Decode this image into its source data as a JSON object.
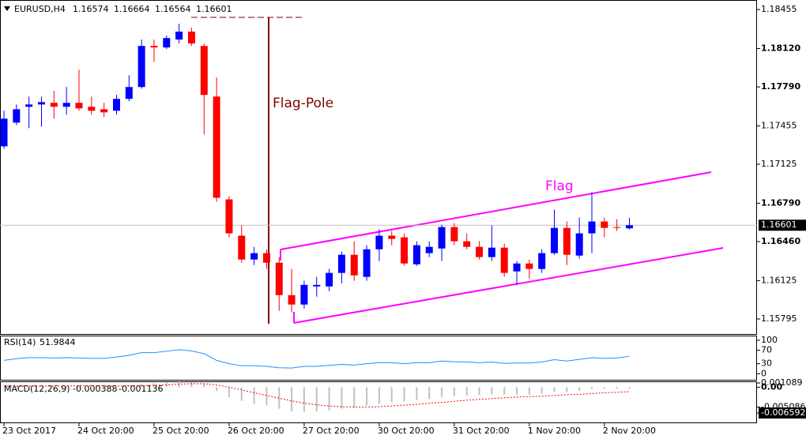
{
  "chart_data": [
    {
      "type": "candlestick",
      "title": "EURUSD,H4",
      "categories": [
        "23 Oct 2017",
        null,
        null,
        null,
        null,
        null,
        "24 Oct 20:00",
        null,
        null,
        null,
        null,
        null,
        "25 Oct 20:00",
        null,
        null,
        null,
        null,
        null,
        "26 Oct 20:00",
        null,
        null,
        null,
        null,
        null,
        "27 Oct 20:00",
        null,
        null,
        null,
        null,
        null,
        "30 Oct 20:00",
        null,
        null,
        null,
        null,
        null,
        "31 Oct 20:00",
        null,
        null,
        null,
        null,
        null,
        "1 Nov 20:00",
        null,
        null,
        null,
        null,
        null,
        "2 Nov 20:00",
        null,
        null
      ],
      "open": [
        1.17279,
        1.17483,
        1.17619,
        1.17639,
        1.17653,
        1.17619,
        1.17653,
        1.17619,
        1.17598,
        1.17585,
        1.17687,
        1.17789,
        1.18142,
        1.18129,
        1.18197,
        1.18265,
        1.18142,
        1.17707,
        1.16823,
        1.16511,
        1.16306,
        1.16361,
        1.16279,
        1.16,
        1.15919,
        1.16075,
        1.16075,
        1.16191,
        1.16347,
        1.16157,
        1.16394,
        1.16511,
        1.16497,
        1.16265,
        1.16361,
        1.16401,
        1.16585,
        1.16463,
        1.16415,
        1.16327,
        1.16408,
        1.16204,
        1.16272,
        1.16225,
        1.16361,
        1.16578,
        1.1634,
        1.16531,
        1.16633,
        1.16585,
        1.16574
      ],
      "high": [
        1.17585,
        1.17639,
        1.17707,
        1.17707,
        1.17755,
        1.17789,
        1.17938,
        1.17707,
        1.17653,
        1.17721,
        1.17891,
        1.18197,
        1.18197,
        1.18231,
        1.18333,
        1.18299,
        1.18163,
        1.1787,
        1.1685,
        1.16598,
        1.16415,
        1.16394,
        1.16327,
        1.16225,
        1.16123,
        1.16157,
        1.16225,
        1.16374,
        1.16463,
        1.16429,
        1.16565,
        1.16551,
        1.16531,
        1.16463,
        1.16463,
        1.16605,
        1.16619,
        1.16531,
        1.16463,
        1.16598,
        1.16443,
        1.16293,
        1.16306,
        1.16394,
        1.16735,
        1.16633,
        1.16667,
        1.16884,
        1.16667,
        1.16653,
        1.16664
      ],
      "low": [
        1.17258,
        1.17462,
        1.17435,
        1.17449,
        1.17517,
        1.17551,
        1.17585,
        1.17551,
        1.1753,
        1.17551,
        1.17666,
        1.17775,
        1.18006,
        1.18115,
        1.18163,
        1.18142,
        1.17381,
        1.16803,
        1.16497,
        1.16279,
        1.16258,
        1.16225,
        1.15864,
        1.15851,
        1.15885,
        1.15987,
        1.16034,
        1.16102,
        1.16123,
        1.16123,
        1.16293,
        1.16429,
        1.16252,
        1.16252,
        1.16327,
        1.16293,
        1.16429,
        1.16394,
        1.16306,
        1.16293,
        1.16157,
        1.16088,
        1.16143,
        1.16191,
        1.16347,
        1.16258,
        1.16313,
        1.16361,
        1.16497,
        1.16551,
        1.16564
      ],
      "close": [
        1.17517,
        1.17598,
        1.17639,
        1.17659,
        1.17619,
        1.17653,
        1.17605,
        1.17585,
        1.17571,
        1.17687,
        1.17789,
        1.18142,
        1.18129,
        1.1821,
        1.18265,
        1.18163,
        1.17721,
        1.16837,
        1.16531,
        1.16306,
        1.16361,
        1.16279,
        1.16,
        1.15919,
        1.16088,
        1.16088,
        1.16191,
        1.16347,
        1.1617,
        1.16394,
        1.16511,
        1.16483,
        1.16272,
        1.16429,
        1.16415,
        1.16585,
        1.16463,
        1.16415,
        1.16327,
        1.16408,
        1.16191,
        1.16272,
        1.16225,
        1.16361,
        1.16578,
        1.16347,
        1.16531,
        1.16633,
        1.16578,
        1.16578,
        1.16601
      ],
      "up_color": "#0000ff",
      "down_color": "#ff0000",
      "ylim": [
        1.15666,
        1.18537
      ],
      "yticks": [
        1.18455,
        {
          "value": 1.1812,
          "label": "1.18120"
        },
        {
          "value": 1.1779,
          "label": "1.17790"
        },
        1.17455,
        1.17125,
        {
          "value": 1.1679,
          "label": "1.16790"
        },
        {
          "value": 1.1646,
          "label": "1.16460"
        },
        1.16125,
        1.15795
      ],
      "annotations": [
        "Flag-Pole",
        "Flag"
      ]
    },
    {
      "type": "line",
      "title": "RSI(14)",
      "values": [
        40,
        45,
        48,
        48,
        47,
        48,
        47,
        46,
        46,
        50,
        55,
        63,
        63,
        67,
        72,
        68,
        60,
        40,
        30,
        24,
        24,
        22,
        18,
        17,
        22,
        22,
        25,
        28,
        26,
        30,
        33,
        33,
        30,
        33,
        33,
        38,
        36,
        35,
        33,
        35,
        31,
        32,
        32,
        35,
        42,
        38,
        43,
        48,
        46,
        47,
        51.9844
      ],
      "color": "#1e90ff",
      "ylim": [
        -18,
        114
      ],
      "yticks": [
        100,
        70,
        30,
        0
      ]
    },
    {
      "type": "macd",
      "title": "MACD(12,26,9)",
      "values": [
        0.0002,
        0.0003,
        0.0004,
        0.0004,
        0.0004,
        0.0004,
        0.0004,
        0.0003,
        0.0003,
        0.0003,
        0.0005,
        0.0008,
        0.001,
        0.0012,
        0.0014,
        0.0013,
        0.0008,
        -0.001,
        -0.0025,
        -0.0035,
        -0.0042,
        -0.0047,
        -0.0055,
        -0.0062,
        -0.0063,
        -0.0062,
        -0.006,
        -0.0055,
        -0.0052,
        -0.0047,
        -0.0042,
        -0.0038,
        -0.0036,
        -0.0033,
        -0.003,
        -0.0026,
        -0.0023,
        -0.0021,
        -0.002,
        -0.0018,
        -0.0019,
        -0.0019,
        -0.0019,
        -0.0017,
        -0.0012,
        -0.0012,
        -0.0009,
        -0.0005,
        -0.0004,
        -0.0004,
        -0.000388
      ],
      "signal": [
        0.0003,
        0.0003,
        0.0003,
        0.0003,
        0.0003,
        0.0003,
        0.0004,
        0.0004,
        0.0003,
        0.0003,
        0.0004,
        0.0004,
        0.0005,
        0.0006,
        0.0008,
        0.0009,
        0.0009,
        0.0006,
        0,
        -0.0007,
        -0.0014,
        -0.0021,
        -0.0028,
        -0.0035,
        -0.0041,
        -0.0045,
        -0.0048,
        -0.005,
        -0.0051,
        -0.0051,
        -0.005,
        -0.0048,
        -0.0046,
        -0.0044,
        -0.0041,
        -0.0039,
        -0.0036,
        -0.0033,
        -0.0031,
        -0.0029,
        -0.0027,
        -0.0025,
        -0.0024,
        -0.0023,
        -0.0021,
        -0.0019,
        -0.0018,
        -0.0016,
        -0.0014,
        -0.0013,
        -0.001136
      ],
      "color": "#c0c0c0",
      "signal_color": "#ff0000",
      "ylim": [
        -0.009,
        0.0015
      ],
      "yticks": [
        0.001089,
        {
          "value": 0,
          "label": "0.00"
        },
        -0.005086,
        -0.006592
      ]
    }
  ]
}
